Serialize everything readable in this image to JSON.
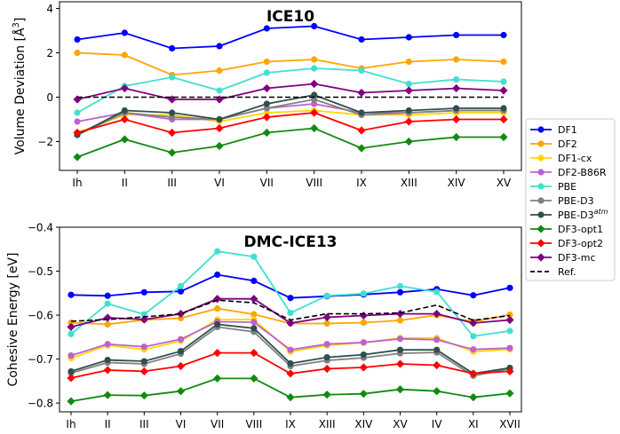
{
  "chart_data": [
    {
      "type": "line",
      "title": "ICE10",
      "ylabel": "Volume Deviation [Å³]",
      "ylabel_main": "Volume Deviation [",
      "ylabel_unit": "Å",
      "ylabel_exp": "3",
      "ylabel_close": "]",
      "xlabel": "",
      "categories": [
        "Ih",
        "II",
        "III",
        "VI",
        "VII",
        "VIII",
        "IX",
        "XIII",
        "XIV",
        "XV"
      ],
      "ylim": [
        -3.3,
        4.3
      ],
      "yticks": [
        -2,
        0,
        2,
        4
      ],
      "grid": false,
      "series": [
        {
          "name": "DF1",
          "color": "#0000ff",
          "marker": "circle",
          "dash": false,
          "values": [
            2.6,
            2.9,
            2.2,
            2.3,
            3.1,
            3.2,
            2.6,
            2.7,
            2.8,
            2.8
          ]
        },
        {
          "name": "DF2",
          "color": "#ffa500",
          "marker": "circle",
          "dash": false,
          "values": [
            2.0,
            1.9,
            1.0,
            1.2,
            1.6,
            1.7,
            1.3,
            1.6,
            1.7,
            1.6
          ]
        },
        {
          "name": "DF1-cx",
          "color": "#ffd700",
          "marker": "circle",
          "dash": false,
          "values": [
            -1.6,
            -0.8,
            -0.8,
            -1.1,
            -0.7,
            -0.6,
            -0.8,
            -0.8,
            -0.7,
            -0.7
          ]
        },
        {
          "name": "DF2-B86R",
          "color": "#c060d0",
          "marker": "circle",
          "dash": false,
          "values": [
            -1.1,
            -0.7,
            -1.0,
            -1.0,
            -0.5,
            -0.3,
            -0.7,
            -0.7,
            -0.6,
            -0.6
          ]
        },
        {
          "name": "PBE",
          "color": "#40e0d0",
          "marker": "circle",
          "dash": false,
          "values": [
            -0.7,
            0.5,
            0.9,
            0.3,
            1.1,
            1.3,
            1.2,
            0.6,
            0.8,
            0.7
          ]
        },
        {
          "name": "PBE-D3",
          "color": "#808080",
          "marker": "circle",
          "dash": false,
          "values": [
            -1.7,
            -0.7,
            -0.9,
            -1.0,
            -0.5,
            -0.1,
            -0.8,
            -0.7,
            -0.6,
            -0.6
          ]
        },
        {
          "name": "PBE-D3atm",
          "color": "#2f4f4f",
          "marker": "circle",
          "dash": false,
          "values": [
            -1.7,
            -0.6,
            -0.7,
            -1.0,
            -0.3,
            0.1,
            -0.7,
            -0.6,
            -0.5,
            -0.5
          ]
        },
        {
          "name": "DF3-opt1",
          "color": "#128a12",
          "marker": "diamond",
          "dash": false,
          "values": [
            -2.7,
            -1.9,
            -2.5,
            -2.2,
            -1.6,
            -1.4,
            -2.3,
            -2.0,
            -1.8,
            -1.8
          ]
        },
        {
          "name": "DF3-opt2",
          "color": "#ff0000",
          "marker": "diamond",
          "dash": false,
          "values": [
            -1.6,
            -1.0,
            -1.6,
            -1.4,
            -0.9,
            -0.7,
            -1.5,
            -1.1,
            -1.0,
            -1.0
          ]
        },
        {
          "name": "DF3-mc",
          "color": "#800080",
          "marker": "diamond",
          "dash": false,
          "values": [
            -0.1,
            0.4,
            -0.1,
            -0.1,
            0.4,
            0.6,
            0.2,
            0.3,
            0.4,
            0.3
          ]
        },
        {
          "name": "Ref.",
          "color": "#000000",
          "marker": "none",
          "dash": true,
          "values": [
            0,
            0,
            0,
            0,
            0,
            0,
            0,
            0,
            0,
            0
          ]
        }
      ]
    },
    {
      "type": "line",
      "title": "DMC-ICE13",
      "ylabel": "Cohesive Energy [eV]",
      "xlabel": "",
      "categories": [
        "Ih",
        "II",
        "III",
        "VI",
        "VII",
        "VIII",
        "IX",
        "XIII",
        "XIV",
        "XV",
        "IV",
        "XI",
        "XVII"
      ],
      "ylim": [
        -0.82,
        -0.4
      ],
      "yticks": [
        -0.8,
        -0.7,
        -0.6,
        -0.5,
        -0.4
      ],
      "ytick_labels": [
        "−0.8",
        "−0.7",
        "−0.6",
        "−0.5",
        "−0.4"
      ],
      "grid": false,
      "series": [
        {
          "name": "DF1",
          "color": "#0000ff",
          "marker": "circle",
          "dash": false,
          "values": [
            -0.554,
            -0.556,
            -0.548,
            -0.546,
            -0.508,
            -0.522,
            -0.561,
            -0.557,
            -0.553,
            -0.548,
            -0.541,
            -0.555,
            -0.538
          ]
        },
        {
          "name": "DF2",
          "color": "#ffa500",
          "marker": "circle",
          "dash": false,
          "values": [
            -0.617,
            -0.621,
            -0.611,
            -0.607,
            -0.585,
            -0.598,
            -0.619,
            -0.619,
            -0.617,
            -0.612,
            -0.6,
            -0.615,
            -0.599
          ]
        },
        {
          "name": "DF1-cx",
          "color": "#ffd700",
          "marker": "circle",
          "dash": false,
          "values": [
            -0.698,
            -0.669,
            -0.678,
            -0.659,
            -0.61,
            -0.61,
            -0.683,
            -0.669,
            -0.663,
            -0.652,
            -0.652,
            -0.683,
            -0.678
          ]
        },
        {
          "name": "DF2-B86R",
          "color": "#c060d0",
          "marker": "circle",
          "dash": false,
          "values": [
            -0.692,
            -0.666,
            -0.672,
            -0.655,
            -0.615,
            -0.616,
            -0.679,
            -0.666,
            -0.662,
            -0.654,
            -0.656,
            -0.678,
            -0.675
          ]
        },
        {
          "name": "PBE",
          "color": "#40e0d0",
          "marker": "circle",
          "dash": false,
          "values": [
            -0.643,
            -0.574,
            -0.598,
            -0.534,
            -0.455,
            -0.467,
            -0.595,
            -0.556,
            -0.551,
            -0.534,
            -0.547,
            -0.648,
            -0.636
          ]
        },
        {
          "name": "PBE-D3",
          "color": "#808080",
          "marker": "circle",
          "dash": false,
          "values": [
            -0.732,
            -0.708,
            -0.711,
            -0.688,
            -0.627,
            -0.638,
            -0.716,
            -0.703,
            -0.697,
            -0.687,
            -0.685,
            -0.738,
            -0.722
          ]
        },
        {
          "name": "PBE-D3atm",
          "color": "#2f4f4f",
          "marker": "circle",
          "dash": false,
          "values": [
            -0.728,
            -0.702,
            -0.705,
            -0.682,
            -0.621,
            -0.63,
            -0.71,
            -0.696,
            -0.69,
            -0.679,
            -0.679,
            -0.733,
            -0.72
          ]
        },
        {
          "name": "DF3-opt1",
          "color": "#128a12",
          "marker": "diamond",
          "dash": false,
          "values": [
            -0.796,
            -0.782,
            -0.783,
            -0.773,
            -0.744,
            -0.744,
            -0.787,
            -0.781,
            -0.779,
            -0.769,
            -0.773,
            -0.787,
            -0.778
          ]
        },
        {
          "name": "DF3-opt2",
          "color": "#ff0000",
          "marker": "diamond",
          "dash": false,
          "values": [
            -0.743,
            -0.725,
            -0.728,
            -0.716,
            -0.686,
            -0.686,
            -0.733,
            -0.722,
            -0.719,
            -0.711,
            -0.714,
            -0.733,
            -0.728
          ]
        },
        {
          "name": "DF3-mc",
          "color": "#800080",
          "marker": "diamond",
          "dash": false,
          "values": [
            -0.627,
            -0.606,
            -0.61,
            -0.597,
            -0.563,
            -0.563,
            -0.618,
            -0.605,
            -0.601,
            -0.597,
            -0.597,
            -0.618,
            -0.611
          ]
        },
        {
          "name": "Ref.",
          "color": "#000000",
          "marker": "none",
          "dash": true,
          "values": [
            -0.614,
            -0.61,
            -0.604,
            -0.597,
            -0.566,
            -0.572,
            -0.611,
            -0.597,
            -0.597,
            -0.595,
            -0.577,
            -0.612,
            -0.601
          ]
        }
      ]
    }
  ],
  "legend": {
    "placement": "right",
    "entries": [
      {
        "name": "DF1",
        "label": "DF1",
        "color": "#0000ff",
        "marker": "circle",
        "dash": false
      },
      {
        "name": "DF2",
        "label": "DF2",
        "color": "#ffa500",
        "marker": "circle",
        "dash": false
      },
      {
        "name": "DF1-cx",
        "label": "DF1-cx",
        "color": "#ffd700",
        "marker": "circle",
        "dash": false
      },
      {
        "name": "DF2-B86R",
        "label": "DF2-B86R",
        "color": "#c060d0",
        "marker": "circle",
        "dash": false
      },
      {
        "name": "PBE",
        "label": "PBE",
        "color": "#40e0d0",
        "marker": "circle",
        "dash": false
      },
      {
        "name": "PBE-D3",
        "label": "PBE-D3",
        "color": "#808080",
        "marker": "circle",
        "dash": false
      },
      {
        "name": "PBE-D3atm",
        "label": "PBE-D3",
        "sup": "atm",
        "color": "#2f4f4f",
        "marker": "circle",
        "dash": false
      },
      {
        "name": "DF3-opt1",
        "label": "DF3-opt1",
        "color": "#128a12",
        "marker": "diamond",
        "dash": false
      },
      {
        "name": "DF3-opt2",
        "label": "DF3-opt2",
        "color": "#ff0000",
        "marker": "diamond",
        "dash": false
      },
      {
        "name": "DF3-mc",
        "label": "DF3-mc",
        "color": "#800080",
        "marker": "diamond",
        "dash": false
      },
      {
        "name": "Ref.",
        "label": "Ref.",
        "color": "#000000",
        "marker": "none",
        "dash": true
      }
    ]
  }
}
